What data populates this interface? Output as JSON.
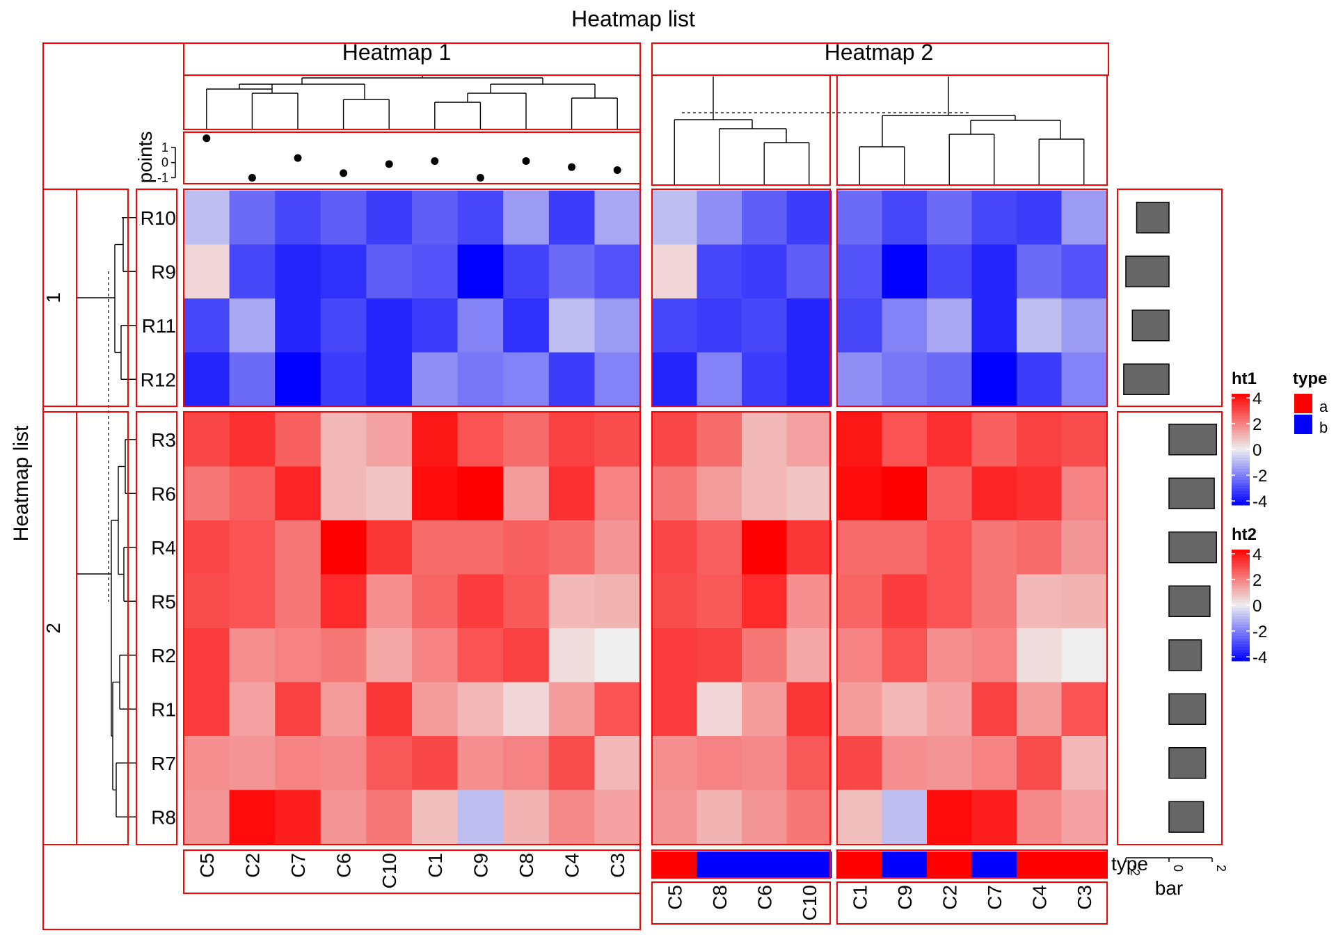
{
  "chart_data": {
    "type": "heatmap",
    "title": "Heatmap list",
    "ylabel": "Heatmap list",
    "row_names": [
      "R10",
      "R9",
      "R11",
      "R12",
      "R3",
      "R6",
      "R4",
      "R5",
      "R2",
      "R1",
      "R7",
      "R8"
    ],
    "row_slices": [
      {
        "label": "1",
        "rows": [
          "R10",
          "R9",
          "R11",
          "R12"
        ]
      },
      {
        "label": "2",
        "rows": [
          "R3",
          "R6",
          "R4",
          "R5",
          "R2",
          "R1",
          "R7",
          "R8"
        ]
      }
    ],
    "heatmap1": {
      "title": "Heatmap 1",
      "legend_name": "ht1",
      "columns": [
        "C5",
        "C2",
        "C7",
        "C6",
        "C10",
        "C1",
        "C9",
        "C8",
        "C4",
        "C3"
      ],
      "points_label": "points",
      "points_axis_ticks": [
        "1",
        "0",
        "-1"
      ],
      "points": [
        1.6,
        -1.0,
        0.3,
        -0.7,
        -0.1,
        0.1,
        -1.0,
        0.1,
        -0.3,
        -0.5
      ],
      "values": [
        [
          -0.8,
          -2.2,
          -2.8,
          -2.4,
          -3.0,
          -2.4,
          -2.8,
          -1.4,
          -3.0,
          -1.2
        ],
        [
          0.4,
          -2.8,
          -3.4,
          -3.2,
          -2.4,
          -2.6,
          -4.0,
          -2.9,
          -2.2,
          -2.6
        ],
        [
          -2.8,
          -1.2,
          -3.4,
          -2.8,
          -3.4,
          -3.0,
          -1.8,
          -3.2,
          -0.8,
          -1.4
        ],
        [
          -3.4,
          -2.2,
          -4.0,
          -3.0,
          -3.4,
          -1.6,
          -2.0,
          -1.8,
          -3.0,
          -1.8
        ],
        [
          2.8,
          3.2,
          2.4,
          0.9,
          1.3,
          3.6,
          2.6,
          2.2,
          2.9,
          2.7
        ],
        [
          2.0,
          2.4,
          3.4,
          0.9,
          0.7,
          3.8,
          4.0,
          1.4,
          3.2,
          1.8
        ],
        [
          2.8,
          2.6,
          2.0,
          4.0,
          3.1,
          2.2,
          2.2,
          2.4,
          2.2,
          1.5
        ],
        [
          2.7,
          2.6,
          2.0,
          3.3,
          1.6,
          2.3,
          3.0,
          2.5,
          0.9,
          1.0
        ],
        [
          3.0,
          1.6,
          1.8,
          2.0,
          1.2,
          1.8,
          2.6,
          2.9,
          0.3,
          0.0
        ],
        [
          3.0,
          1.3,
          2.9,
          1.4,
          3.1,
          1.4,
          0.9,
          0.4,
          1.4,
          2.6
        ],
        [
          1.6,
          1.5,
          1.8,
          1.7,
          2.5,
          2.8,
          1.6,
          1.8,
          2.7,
          0.9
        ],
        [
          1.5,
          3.8,
          3.5,
          1.5,
          2.0,
          0.8,
          -0.8,
          1.0,
          1.7,
          1.3
        ]
      ]
    },
    "heatmap2": {
      "title": "Heatmap 2",
      "legend_name": "ht2",
      "column_slices": [
        [
          "C5",
          "C8",
          "C6",
          "C10"
        ],
        [
          "C1",
          "C9",
          "C2",
          "C7",
          "C4",
          "C3"
        ]
      ],
      "type": [
        "a",
        "b",
        "b",
        "b",
        "a",
        "b",
        "a",
        "b",
        "a",
        "a"
      ],
      "values": [
        [
          -0.8,
          -1.6,
          -2.4,
          -3.0,
          -2.2,
          -2.8,
          -2.2,
          -2.8,
          -3.0,
          -1.4
        ],
        [
          0.4,
          -2.8,
          -3.0,
          -2.4,
          -2.6,
          -4.0,
          -2.8,
          -3.4,
          -2.2,
          -2.6
        ],
        [
          -2.8,
          -3.0,
          -2.8,
          -3.4,
          -2.8,
          -1.8,
          -1.2,
          -3.4,
          -0.8,
          -1.4
        ],
        [
          -3.4,
          -1.8,
          -3.0,
          -3.4,
          -1.6,
          -2.0,
          -2.2,
          -4.0,
          -3.0,
          -1.8
        ],
        [
          2.8,
          2.2,
          0.9,
          1.3,
          3.6,
          2.6,
          3.2,
          2.4,
          2.9,
          2.7
        ],
        [
          2.0,
          1.4,
          0.9,
          0.7,
          3.8,
          4.0,
          2.4,
          3.4,
          3.2,
          1.8
        ],
        [
          2.8,
          2.4,
          4.0,
          3.1,
          2.2,
          2.2,
          2.6,
          2.0,
          2.2,
          1.5
        ],
        [
          2.7,
          2.5,
          3.3,
          1.6,
          2.3,
          3.0,
          2.6,
          2.0,
          0.9,
          1.0
        ],
        [
          3.0,
          2.9,
          2.0,
          1.2,
          1.8,
          2.6,
          1.6,
          1.8,
          0.3,
          0.0
        ],
        [
          3.0,
          0.4,
          1.4,
          3.1,
          1.4,
          0.9,
          1.3,
          2.9,
          1.4,
          2.6
        ],
        [
          1.6,
          1.8,
          1.7,
          2.5,
          2.8,
          1.6,
          1.5,
          1.8,
          2.7,
          0.9
        ],
        [
          1.5,
          1.0,
          1.5,
          2.0,
          0.8,
          -0.8,
          3.8,
          3.5,
          1.7,
          1.3
        ]
      ]
    },
    "bar_annotation": {
      "label": "bar",
      "axis_ticks": [
        "-2",
        "0",
        "2"
      ],
      "values": [
        -1.5,
        -2.0,
        -1.7,
        -2.1,
        2.2,
        2.1,
        2.2,
        1.9,
        1.5,
        1.7,
        1.7,
        1.6
      ]
    },
    "type_annotation_label": "type",
    "color_scale": {
      "min": -4,
      "mid": 0,
      "max": 4,
      "low": "#0000ff",
      "mid_color": "#eeeeee",
      "high": "#ff0000"
    },
    "legends": [
      {
        "name": "ht1",
        "ticks": [
          "4",
          "2",
          "0",
          "-2",
          "-4"
        ]
      },
      {
        "name": "ht2",
        "ticks": [
          "4",
          "2",
          "0",
          "-2",
          "-4"
        ]
      },
      {
        "name": "type",
        "items": [
          {
            "label": "a",
            "color": "#ff0000"
          },
          {
            "label": "b",
            "color": "#0000ff"
          }
        ]
      }
    ],
    "colors": {
      "panel_border": "#ff0000",
      "bar_fill": "#666666",
      "type_a": "#ff0000",
      "type_b": "#0000ff"
    }
  }
}
